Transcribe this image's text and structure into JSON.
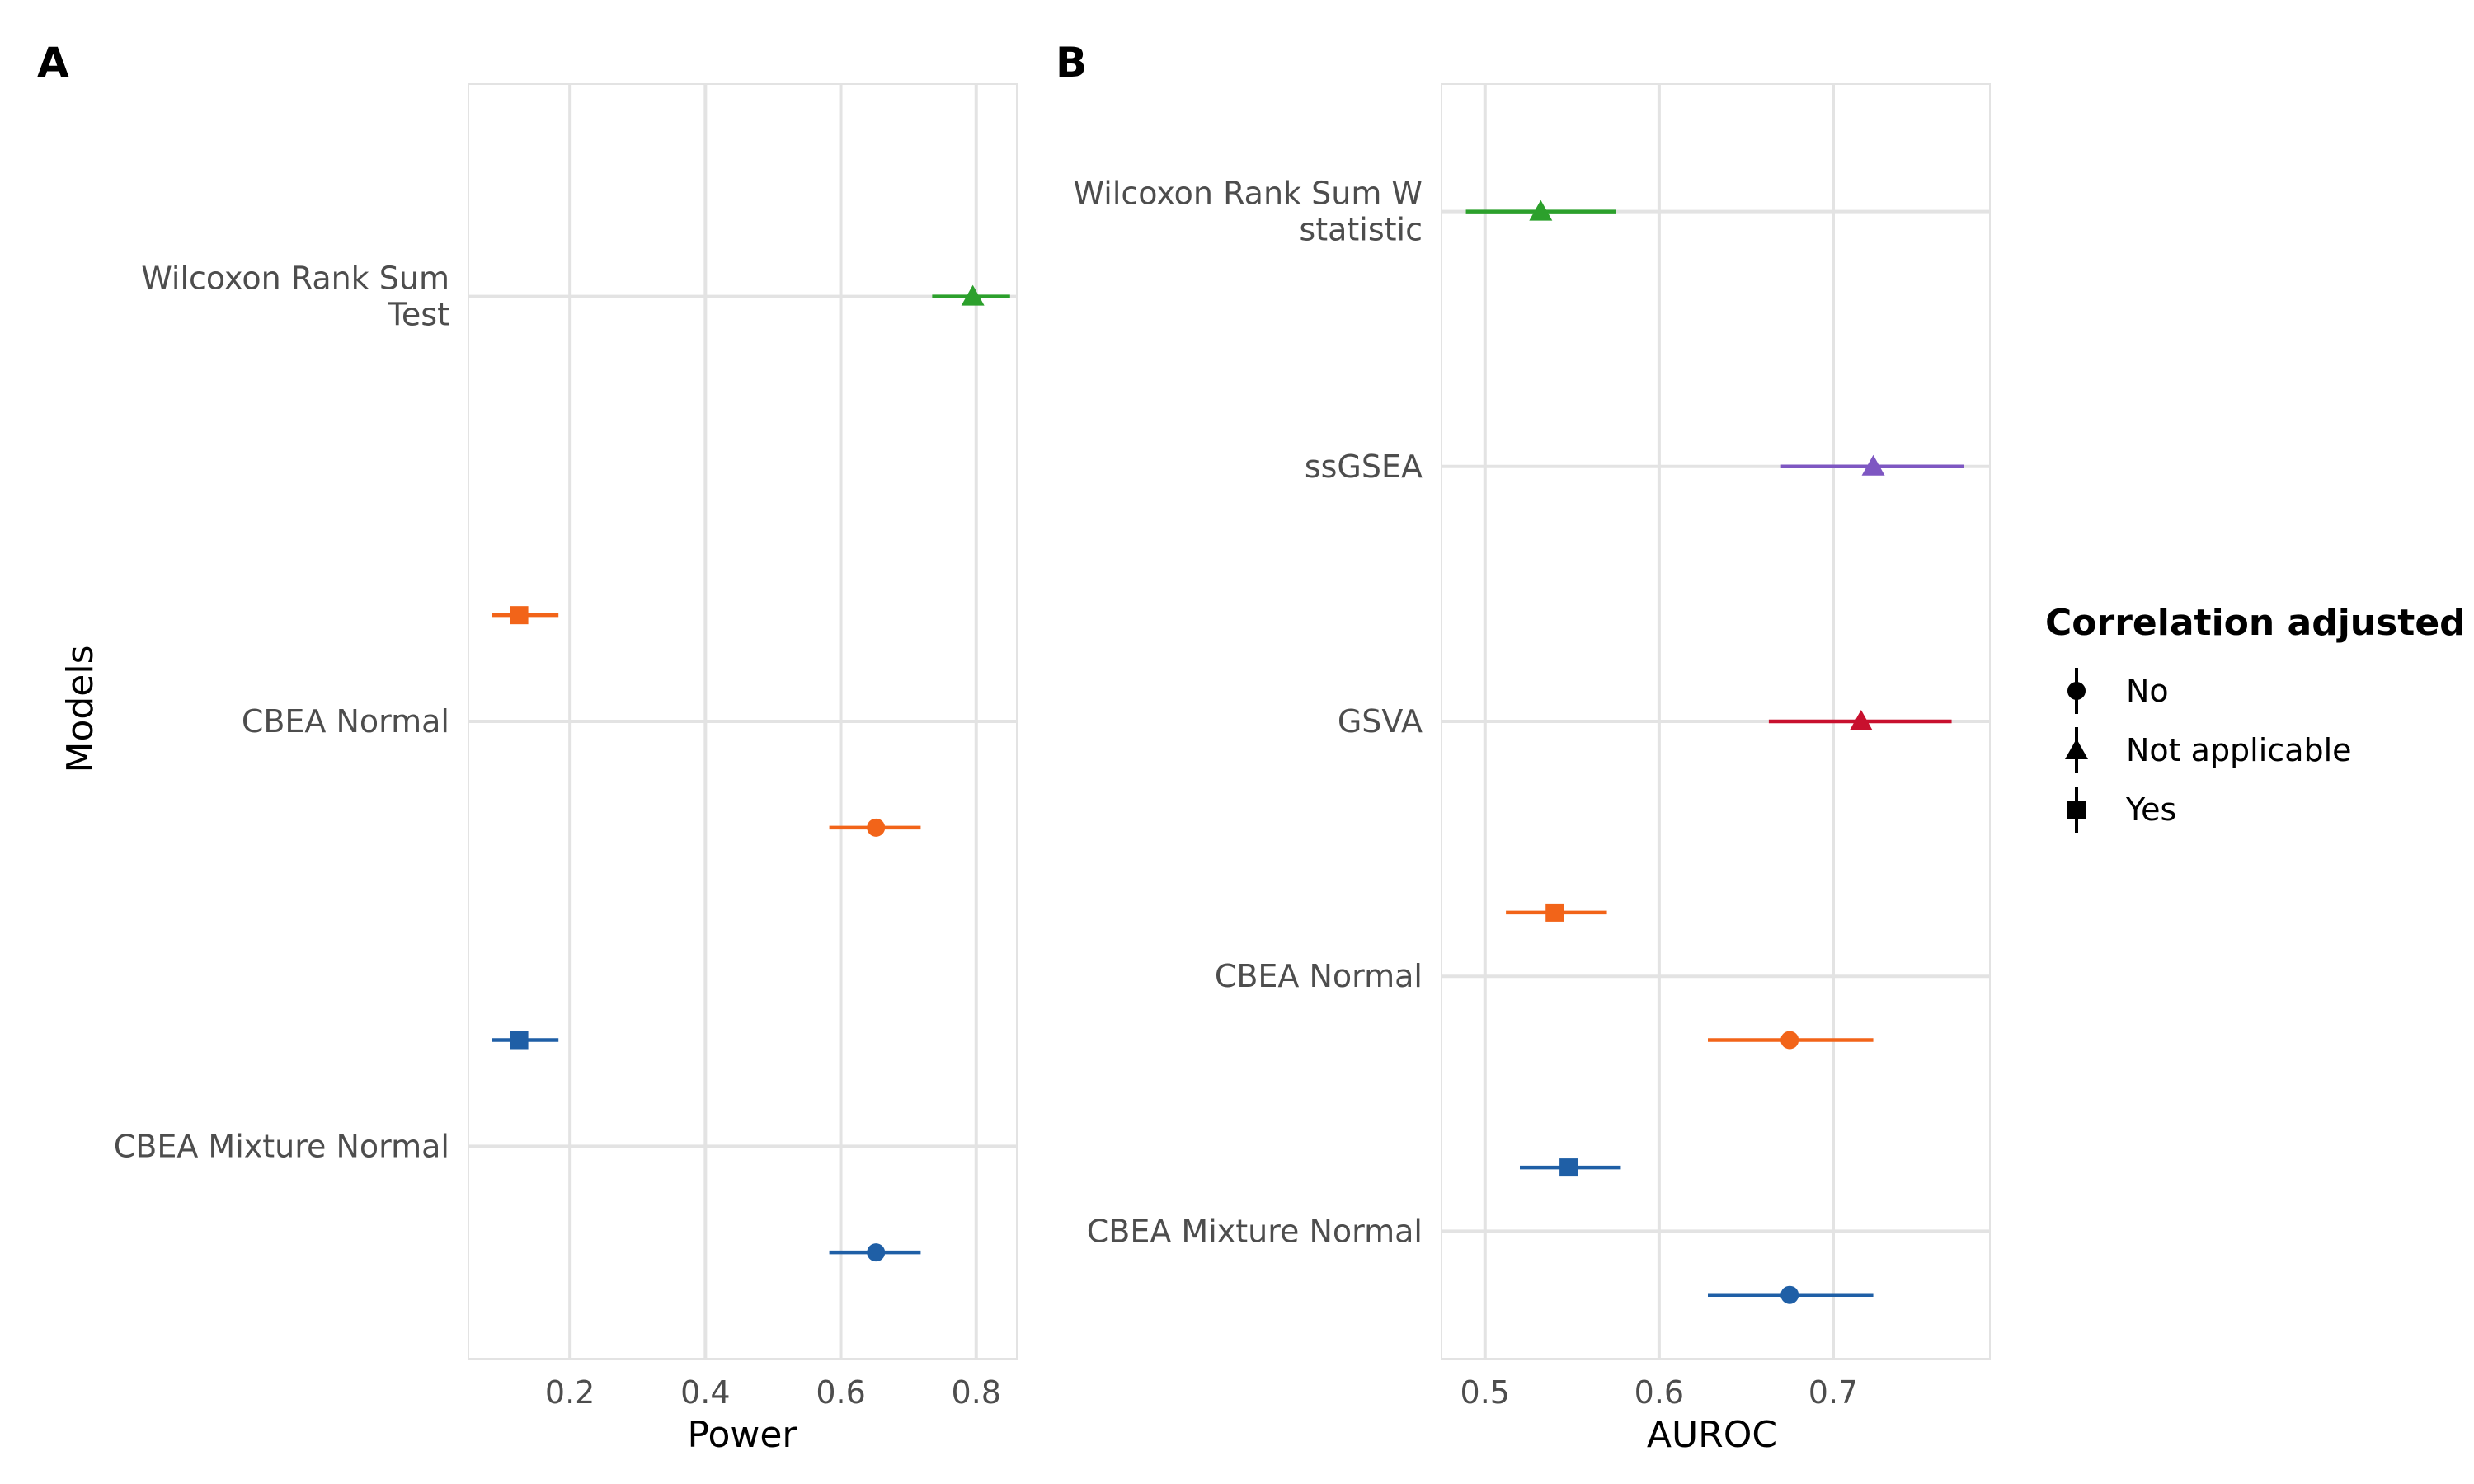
{
  "chart_data": [
    {
      "panel_label": "A",
      "type": "scatter",
      "subtype": "point-range (forest plot)",
      "xlabel": "Power",
      "ylabel": "Models",
      "xlim": [
        0.05,
        0.86
      ],
      "xticks": [
        0.2,
        0.4,
        0.6,
        0.8
      ],
      "xtick_labels": [
        "0.2",
        "0.4",
        "0.6",
        "0.8"
      ],
      "categories": [
        {
          "name": "Wilcoxon Rank Sum Test",
          "label_lines": [
            "Wilcoxon Rank Sum",
            "Test"
          ]
        },
        {
          "name": "CBEA Normal",
          "label_lines": [
            "CBEA Normal"
          ]
        },
        {
          "name": "CBEA Mixture Normal",
          "label_lines": [
            "CBEA Mixture Normal"
          ]
        }
      ],
      "points": [
        {
          "category": "Wilcoxon Rank Sum Test",
          "adjusted": "Not applicable",
          "offset": 0,
          "estimate": 0.795,
          "low": 0.735,
          "high": 0.85,
          "color": "#2ca02c"
        },
        {
          "category": "CBEA Normal",
          "adjusted": "Yes",
          "offset": 0.25,
          "estimate": 0.125,
          "low": 0.085,
          "high": 0.183,
          "color": "#f26419"
        },
        {
          "category": "CBEA Normal",
          "adjusted": "No",
          "offset": -0.25,
          "estimate": 0.652,
          "low": 0.583,
          "high": 0.718,
          "color": "#f26419"
        },
        {
          "category": "CBEA Mixture Normal",
          "adjusted": "Yes",
          "offset": 0.25,
          "estimate": 0.125,
          "low": 0.085,
          "high": 0.183,
          "color": "#1f5fa6"
        },
        {
          "category": "CBEA Mixture Normal",
          "adjusted": "No",
          "offset": -0.25,
          "estimate": 0.652,
          "low": 0.583,
          "high": 0.718,
          "color": "#1f5fa6"
        }
      ]
    },
    {
      "panel_label": "B",
      "type": "scatter",
      "subtype": "point-range (forest plot)",
      "xlabel": "AUROC",
      "ylabel": "",
      "xlim": [
        0.475,
        0.79
      ],
      "xticks": [
        0.5,
        0.6,
        0.7
      ],
      "xtick_labels": [
        "0.5",
        "0.6",
        "0.7"
      ],
      "categories": [
        {
          "name": "Wilcoxon Rank Sum W statistic",
          "label_lines": [
            "Wilcoxon Rank Sum W",
            "statistic"
          ]
        },
        {
          "name": "ssGSEA",
          "label_lines": [
            "ssGSEA"
          ]
        },
        {
          "name": "GSVA",
          "label_lines": [
            "GSVA"
          ]
        },
        {
          "name": "CBEA Normal",
          "label_lines": [
            "CBEA Normal"
          ]
        },
        {
          "name": "CBEA Mixture Normal",
          "label_lines": [
            "CBEA Mixture Normal"
          ]
        }
      ],
      "points": [
        {
          "category": "Wilcoxon Rank Sum W statistic",
          "adjusted": "Not applicable",
          "offset": 0,
          "estimate": 0.532,
          "low": 0.489,
          "high": 0.575,
          "color": "#2ca02c"
        },
        {
          "category": "ssGSEA",
          "adjusted": "Not applicable",
          "offset": 0,
          "estimate": 0.723,
          "low": 0.67,
          "high": 0.775,
          "color": "#7e57c2"
        },
        {
          "category": "GSVA",
          "adjusted": "Not applicable",
          "offset": 0,
          "estimate": 0.716,
          "low": 0.663,
          "high": 0.768,
          "color": "#c8102e"
        },
        {
          "category": "CBEA Normal",
          "adjusted": "Yes",
          "offset": 0.25,
          "estimate": 0.54,
          "low": 0.512,
          "high": 0.57,
          "color": "#f26419"
        },
        {
          "category": "CBEA Normal",
          "adjusted": "No",
          "offset": -0.25,
          "estimate": 0.675,
          "low": 0.628,
          "high": 0.723,
          "color": "#f26419"
        },
        {
          "category": "CBEA Mixture Normal",
          "adjusted": "Yes",
          "offset": 0.25,
          "estimate": 0.548,
          "low": 0.52,
          "high": 0.578,
          "color": "#1f5fa6"
        },
        {
          "category": "CBEA Mixture Normal",
          "adjusted": "No",
          "offset": -0.25,
          "estimate": 0.675,
          "low": 0.628,
          "high": 0.723,
          "color": "#1f5fa6"
        }
      ]
    }
  ],
  "legend": {
    "title": "Correlation adjusted",
    "items": [
      {
        "label": "No",
        "shape": "circle"
      },
      {
        "label": "Not applicable",
        "shape": "triangle"
      },
      {
        "label": "Yes",
        "shape": "square"
      }
    ]
  }
}
